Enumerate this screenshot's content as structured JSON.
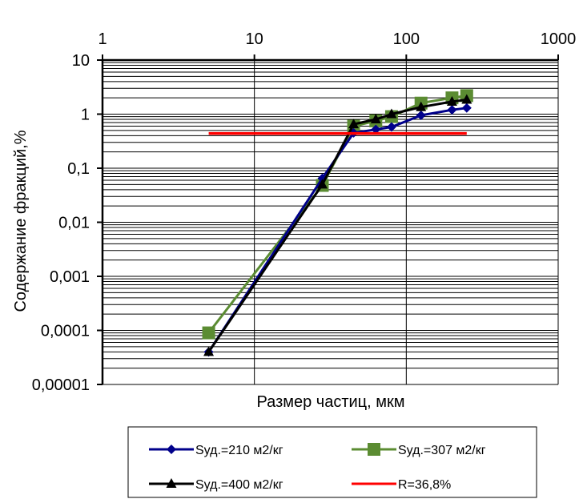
{
  "chart_data": {
    "type": "line",
    "xlabel": "Размер частиц, мкм",
    "ylabel": "Содержание фракций,%",
    "x_scale": "log",
    "y_scale": "log",
    "xlim": [
      1,
      1000
    ],
    "ylim": [
      1e-05,
      10
    ],
    "x_ticks": [
      "1",
      "10",
      "100",
      "1000"
    ],
    "y_ticks": [
      "10",
      "1",
      "0,1",
      "0,01",
      "0,001",
      "0,0001",
      "0,00001"
    ],
    "x_axis_position": "top",
    "grid": "horizontal minor and major, vertical major",
    "legend_position": "bottom",
    "series": [
      {
        "name": "Sуд.=210 м2/кг",
        "color": "#00008B",
        "marker": "diamond",
        "x": [
          5,
          28,
          45,
          63,
          80,
          125,
          200,
          250
        ],
        "y": [
          4e-05,
          0.065,
          0.45,
          0.52,
          0.58,
          0.95,
          1.2,
          1.3
        ]
      },
      {
        "name": "Sуд.=307 м2/кг",
        "color": "#5B8C32",
        "marker": "square",
        "x": [
          5,
          28,
          45,
          63,
          80,
          125,
          200,
          250
        ],
        "y": [
          9e-05,
          0.048,
          0.6,
          0.75,
          0.9,
          1.6,
          2.0,
          2.2
        ]
      },
      {
        "name": "Sуд.=400 м2/кг",
        "color": "#000000",
        "marker": "triangle",
        "x": [
          5,
          28,
          45,
          63,
          80,
          125,
          200,
          250
        ],
        "y": [
          4e-05,
          0.05,
          0.65,
          0.8,
          1.0,
          1.35,
          1.7,
          1.85
        ]
      },
      {
        "name": "R=36,8%",
        "color": "#FF0000",
        "marker": "none",
        "x": [
          5,
          250
        ],
        "y": [
          0.44,
          0.44
        ]
      }
    ]
  }
}
